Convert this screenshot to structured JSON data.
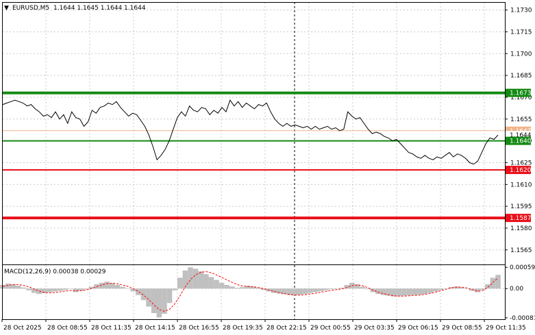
{
  "header": {
    "symbol": "EURUSD,M5",
    "ohlc": "1.1644 1.1645 1.1644 1.1644",
    "arrow": "▼"
  },
  "macd_header": "MACD(12,26,9) 0.00038 0.00029",
  "colors": {
    "green_level": "#138a13",
    "red_level": "#e8101a",
    "price_line": "#000000",
    "ask_line": "#f0b48a",
    "histogram": "#c0c0c0",
    "signal": "#ff0000"
  },
  "chart_data": [
    {
      "type": "line",
      "title": "EURUSD,M5",
      "ylim": [
        1.1555,
        1.1735
      ],
      "y_ticks": [
        "1.1730",
        "1.1715",
        "1.1700",
        "1.1685",
        "1.1670",
        "1.1655",
        "1.1640",
        "1.1625",
        "1.1610",
        "1.1595",
        "1.1580",
        "1.1565"
      ],
      "x_labels": [
        "28 Oct 2025",
        "28 Oct 08:55",
        "28 Oct 11:35",
        "28 Oct 14:15",
        "28 Oct 16:55",
        "28 Oct 19:35",
        "28 Oct 22:15",
        "29 Oct 00:55",
        "29 Oct 03:35",
        "29 Oct 06:15",
        "29 Oct 08:55",
        "29 Oct 11:35"
      ],
      "levels": [
        {
          "value": 1.1673,
          "label": "1.1673",
          "color": "green"
        },
        {
          "value": 1.164,
          "label": "1.1640",
          "color": "green"
        },
        {
          "value": 1.162,
          "label": "1.1620",
          "color": "red"
        },
        {
          "value": 1.1587,
          "label": "1.1587",
          "color": "red"
        }
      ],
      "ask": {
        "value": 1.1647,
        "label": "1.1647"
      },
      "bid": {
        "value": 1.1644,
        "label": "1.1644"
      },
      "price_series": [
        1.1665,
        1.1666,
        1.1667,
        1.1668,
        1.1667,
        1.1666,
        1.1664,
        1.1665,
        1.1662,
        1.166,
        1.1657,
        1.1658,
        1.1656,
        1.166,
        1.1655,
        1.1658,
        1.1652,
        1.166,
        1.1656,
        1.1655,
        1.165,
        1.1653,
        1.1661,
        1.1659,
        1.1663,
        1.1664,
        1.1666,
        1.1665,
        1.1667,
        1.1663,
        1.166,
        1.1657,
        1.1659,
        1.1658,
        1.1654,
        1.165,
        1.1644,
        1.1636,
        1.1627,
        1.163,
        1.1634,
        1.164,
        1.1648,
        1.1656,
        1.166,
        1.1657,
        1.1664,
        1.1661,
        1.166,
        1.1663,
        1.1662,
        1.1658,
        1.1661,
        1.1659,
        1.1663,
        1.166,
        1.1668,
        1.1664,
        1.1667,
        1.1663,
        1.1666,
        1.1664,
        1.1662,
        1.1665,
        1.1664,
        1.1666,
        1.166,
        1.1655,
        1.1652,
        1.165,
        1.1652,
        1.165,
        1.1651,
        1.165,
        1.1649,
        1.165,
        1.1648,
        1.165,
        1.1648,
        1.1649,
        1.165,
        1.1648,
        1.1649,
        1.1647,
        1.1648,
        1.166,
        1.1657,
        1.1655,
        1.1656,
        1.1652,
        1.1648,
        1.1645,
        1.1646,
        1.1645,
        1.1643,
        1.1642,
        1.164,
        1.1641,
        1.1638,
        1.1635,
        1.1632,
        1.1631,
        1.1629,
        1.1628,
        1.163,
        1.1628,
        1.1627,
        1.1629,
        1.1628,
        1.163,
        1.1632,
        1.1629,
        1.1631,
        1.163,
        1.1628,
        1.1625,
        1.1624,
        1.1626,
        1.1632,
        1.1638,
        1.1642,
        1.1641,
        1.1644
      ]
    },
    {
      "type": "bar",
      "title": "MACD(12,26,9)",
      "ylim": [
        -0.00085,
        0.00065
      ],
      "y_ticks": [
        "0.00059",
        "0.00",
        "-0.00081"
      ],
      "histogram": [
        0.0001,
        0.00014,
        0.00012,
        8e-05,
        3e-05,
        -5e-05,
        -0.00012,
        -0.00015,
        -0.00013,
        -0.0001,
        -8e-05,
        -6e-05,
        -4e-05,
        0.0,
        -0.0001,
        -6e-05,
        -2e-05,
        5e-05,
        0.00012,
        0.00016,
        0.00019,
        0.00015,
        0.0001,
        5e-05,
        0.0,
        -8e-05,
        -0.00018,
        -0.00032,
        -0.0005,
        -0.00068,
        -0.0008,
        -0.0007,
        -0.0004,
        -5e-05,
        0.0003,
        0.0005,
        0.00059,
        0.00055,
        0.00048,
        0.0004,
        0.00032,
        0.00024,
        0.00016,
        0.0001,
        6e-05,
        2e-05,
        4e-05,
        8e-05,
        6e-05,
        3e-05,
        -4e-05,
        -8e-05,
        -0.00012,
        -0.00014,
        -0.00016,
        -0.00018,
        -0.00019,
        -0.00017,
        -0.00015,
        -0.00012,
        -0.0001,
        -7e-05,
        -5e-05,
        -2e-05,
        0.0,
        2e-05,
        0.0001,
        0.00016,
        0.00012,
        5e-05,
        -2e-05,
        -0.0001,
        -0.00015,
        -0.00018,
        -0.0002,
        -0.00022,
        -0.00021,
        -0.0002,
        -0.00019,
        -0.00018,
        -0.00017,
        -0.00015,
        -0.00012,
        -8e-05,
        -4e-05,
        0.0,
        4e-05,
        6e-05,
        4e-05,
        1e-05,
        -6e-05,
        -0.0001,
        -4e-05,
        0.00012,
        0.0003,
        0.00038
      ],
      "signal": [
        6e-05,
        9e-05,
        0.00011,
        0.00011,
        9e-05,
        5e-05,
        -1e-05,
        -7e-05,
        -0.00011,
        -0.00012,
        -0.00011,
        -9e-05,
        -7e-05,
        -5e-05,
        -6e-05,
        -6e-05,
        -4e-05,
        0.0,
        5e-05,
        0.0001,
        0.00014,
        0.00015,
        0.00013,
        0.0001,
        6e-05,
        0.0,
        -8e-05,
        -0.00018,
        -0.0003,
        -0.00045,
        -0.00058,
        -0.00063,
        -0.00058,
        -0.00042,
        -0.0002,
        5e-05,
        0.00025,
        0.00038,
        0.00045,
        0.00047,
        0.00044,
        0.00038,
        0.00031,
        0.00024,
        0.00017,
        0.00011,
        7e-05,
        6e-05,
        5e-05,
        3e-05,
        0.0,
        -4e-05,
        -8e-05,
        -0.00011,
        -0.00014,
        -0.00016,
        -0.00018,
        -0.00018,
        -0.00017,
        -0.00015,
        -0.00013,
        -0.0001,
        -8e-05,
        -5e-05,
        -3e-05,
        -1e-05,
        3e-05,
        8e-05,
        0.0001,
        8e-05,
        3e-05,
        -4e-05,
        -0.0001,
        -0.00014,
        -0.00017,
        -0.0002,
        -0.00021,
        -0.00021,
        -0.0002,
        -0.00019,
        -0.00018,
        -0.00016,
        -0.00013,
        -0.0001,
        -6e-05,
        -2e-05,
        2e-05,
        4e-05,
        4e-05,
        2e-05,
        -3e-05,
        -7e-05,
        -6e-05,
        3e-05,
        0.00017,
        0.00029
      ]
    }
  ]
}
